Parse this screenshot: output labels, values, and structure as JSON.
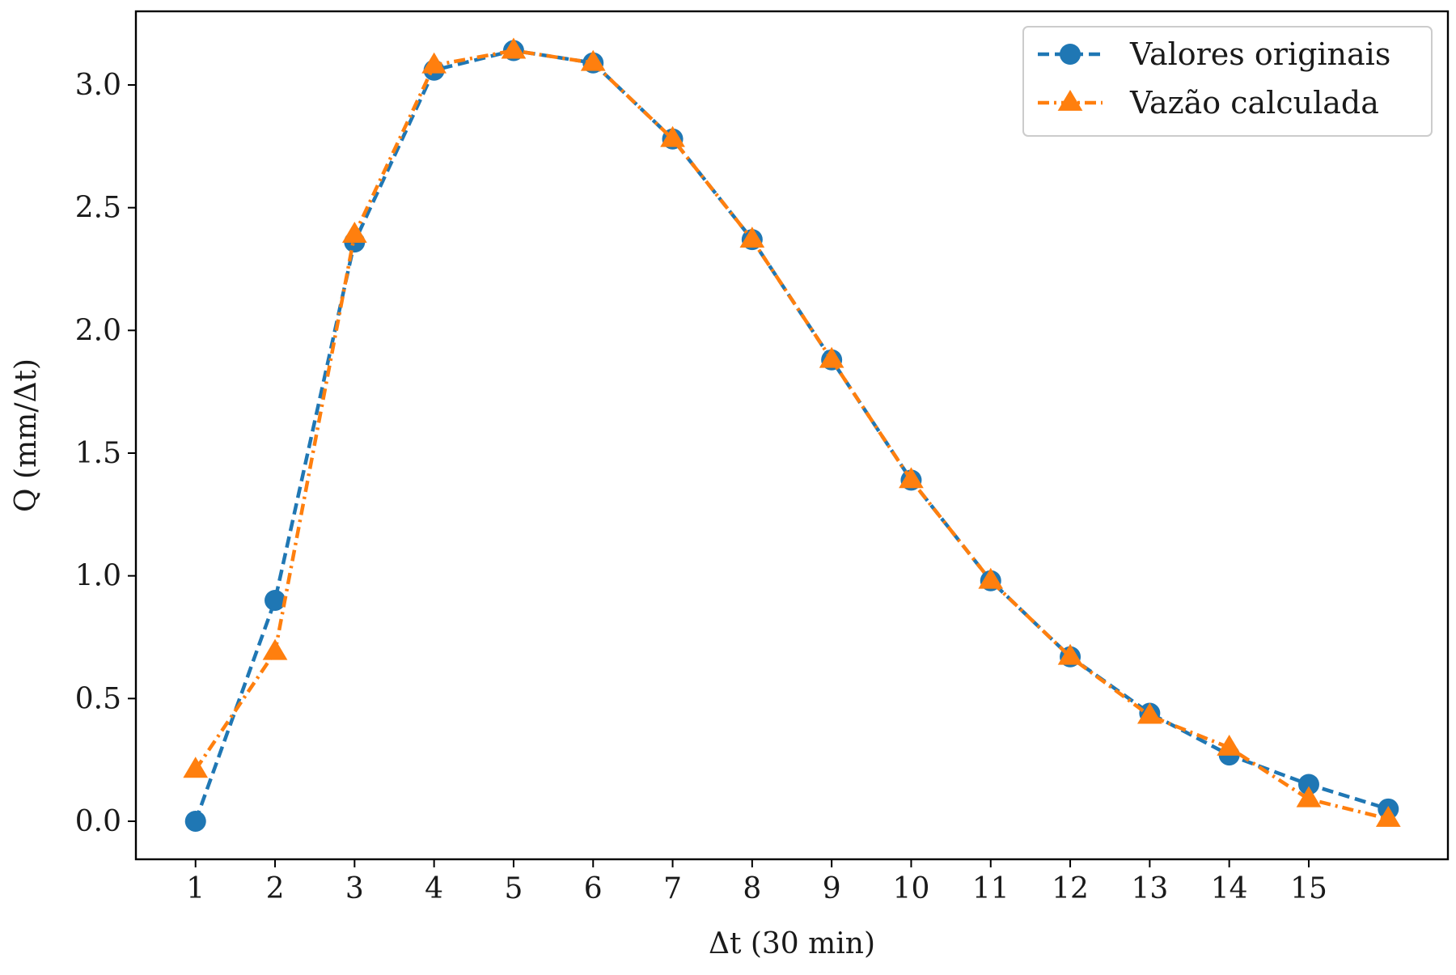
{
  "chart_data": {
    "type": "line",
    "title": "",
    "xlabel": "Δt (30 min)",
    "ylabel": "Q (mm/Δt)",
    "x": [
      1,
      2,
      3,
      4,
      5,
      6,
      7,
      8,
      9,
      10,
      11,
      12,
      13,
      14,
      15,
      16
    ],
    "xticks": [
      1,
      2,
      3,
      4,
      5,
      6,
      7,
      8,
      9,
      10,
      11,
      12,
      13,
      14,
      15
    ],
    "xtick_labels": [
      "1",
      "2",
      "3",
      "4",
      "5",
      "6",
      "7",
      "8",
      "9",
      "10",
      "11",
      "12",
      "13",
      "14",
      "15"
    ],
    "yticks": [
      0.0,
      0.5,
      1.0,
      1.5,
      2.0,
      2.5,
      3.0
    ],
    "ytick_labels": [
      "0.0",
      "0.5",
      "1.0",
      "1.5",
      "2.0",
      "2.5",
      "3.0"
    ],
    "xlim": [
      0.25,
      16.75
    ],
    "ylim": [
      -0.155,
      3.3
    ],
    "grid": false,
    "legend_position": "top-right",
    "series": [
      {
        "name": "Valores originais",
        "color": "#1f77b4",
        "marker": "circle",
        "line_style": "dashed",
        "values": [
          0.0,
          0.9,
          2.36,
          3.06,
          3.14,
          3.09,
          2.78,
          2.37,
          1.88,
          1.39,
          0.98,
          0.67,
          0.44,
          0.27,
          0.15,
          0.05
        ]
      },
      {
        "name": "Vazão calculada",
        "color": "#ff7f0e",
        "marker": "triangle",
        "line_style": "dash-dot",
        "values": [
          0.21,
          0.69,
          2.39,
          3.08,
          3.14,
          3.09,
          2.78,
          2.37,
          1.88,
          1.39,
          0.98,
          0.67,
          0.43,
          0.3,
          0.09,
          0.01
        ]
      }
    ]
  }
}
